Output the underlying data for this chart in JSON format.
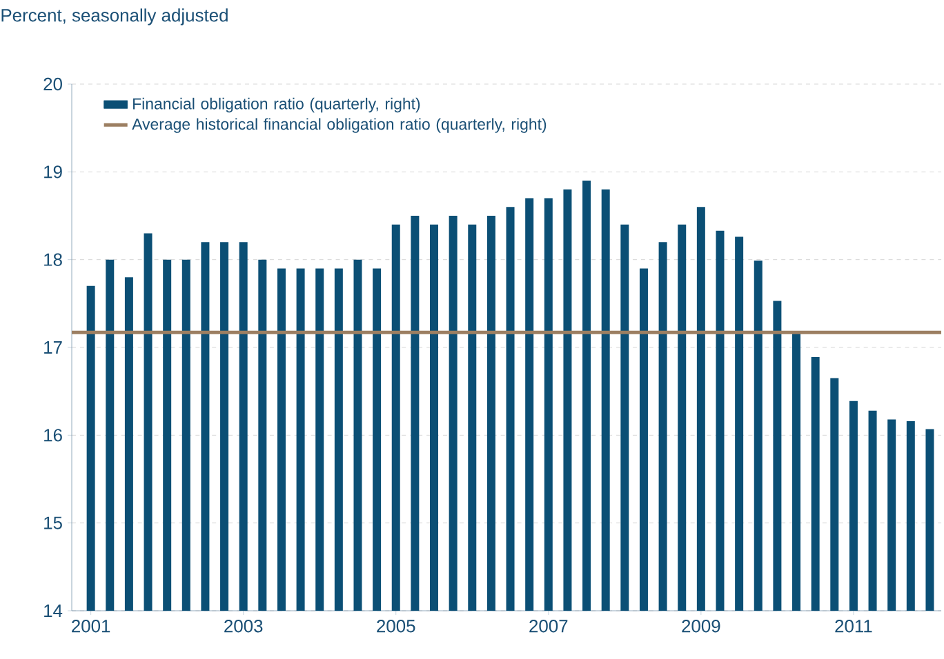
{
  "chart_data": {
    "type": "bar",
    "ylabel": "Percent, seasonally adjusted",
    "x": [
      2001,
      2001.25,
      2001.5,
      2001.75,
      2002,
      2002.25,
      2002.5,
      2002.75,
      2003,
      2003.25,
      2003.5,
      2003.75,
      2004,
      2004.25,
      2004.5,
      2004.75,
      2005,
      2005.25,
      2005.5,
      2005.75,
      2006,
      2006.25,
      2006.5,
      2006.75,
      2007,
      2007.25,
      2007.5,
      2007.75,
      2008,
      2008.25,
      2008.5,
      2008.75,
      2009,
      2009.25,
      2009.5,
      2009.75,
      2010,
      2010.25,
      2010.5,
      2010.75,
      2011,
      2011.25,
      2011.5,
      2011.75,
      2012
    ],
    "series": [
      {
        "name": "Financial obligation ratio (quarterly, right)",
        "color": "#0b4f75",
        "values": [
          17.7,
          18.0,
          17.8,
          18.3,
          18.0,
          18.0,
          18.2,
          18.2,
          18.2,
          18.0,
          17.9,
          17.9,
          17.9,
          17.9,
          18.0,
          17.9,
          18.4,
          18.5,
          18.4,
          18.5,
          18.4,
          18.5,
          18.6,
          18.7,
          18.7,
          18.8,
          18.9,
          18.8,
          18.4,
          17.9,
          18.2,
          18.4,
          18.6,
          18.33,
          18.26,
          17.99,
          17.53,
          17.17,
          16.89,
          16.65,
          16.39,
          16.28,
          16.18,
          16.16,
          16.07
        ]
      }
    ],
    "ref_lines": [
      {
        "axis": "y",
        "value": 17.17,
        "label": "Average historical financial obligation ratio (quarterly, right)",
        "color": "#9c7f62"
      }
    ],
    "xlim": [
      2000.75,
      2012.15
    ],
    "xticks": [
      2001,
      2003,
      2005,
      2007,
      2009,
      2011
    ],
    "ylim": [
      14,
      20
    ],
    "yticks": [
      14,
      15,
      16,
      17,
      18,
      19,
      20
    ],
    "grid": "y",
    "legend": "top left"
  }
}
